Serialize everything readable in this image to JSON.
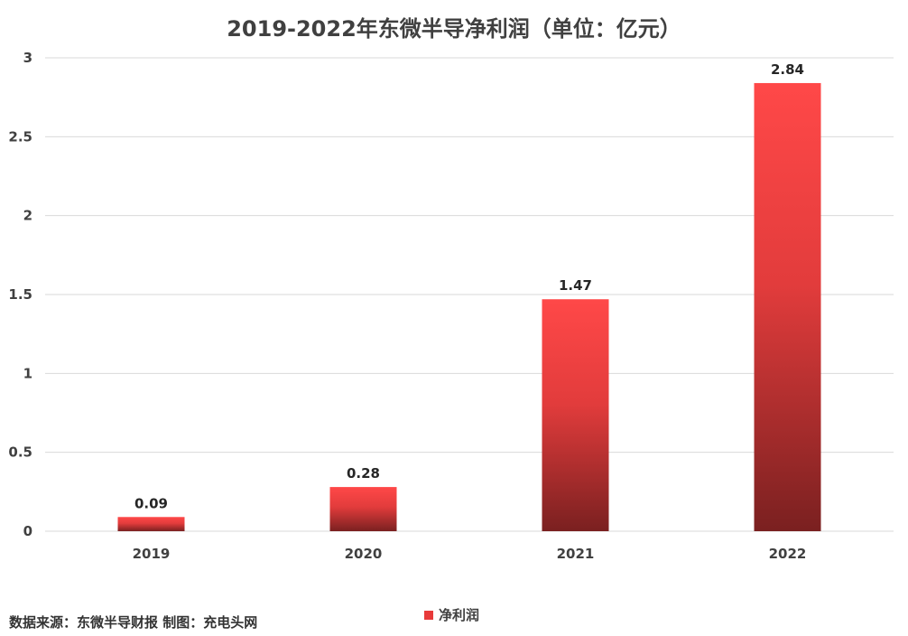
{
  "chart_data": {
    "type": "bar",
    "title": "2019-2022年东微半导净利润（单位：亿元）",
    "categories": [
      "2019",
      "2020",
      "2021",
      "2022"
    ],
    "series": [
      {
        "name": "净利润",
        "values": [
          0.09,
          0.28,
          1.47,
          2.84
        ]
      }
    ],
    "data_labels": [
      "0.09",
      "0.28",
      "1.47",
      "2.84"
    ],
    "ylim": [
      0,
      3
    ],
    "yticks": [
      "0",
      "0.5",
      "1",
      "1.5",
      "2",
      "2.5",
      "3"
    ],
    "grid": true,
    "legend_position": "bottom",
    "colors": {
      "bar_top": "#ff4848",
      "bar_bottom": "#7a2020",
      "grid": "#d9d9d9"
    }
  },
  "source_note": "数据来源：东微半导财报 制图：充电头网"
}
